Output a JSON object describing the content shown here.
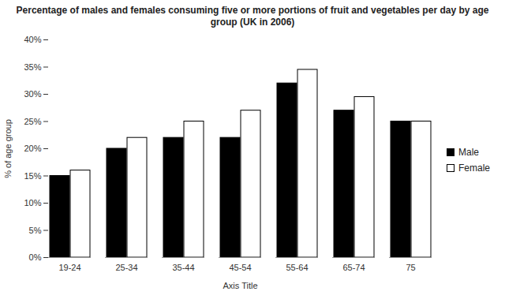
{
  "chart_data": {
    "type": "bar",
    "title": "Percentage of males and females consuming five or more portions of fruit and vegetables per day by age group (UK in 2006)",
    "x_label": "Axis Title",
    "y_label": "% of age group",
    "categories": [
      "19-24",
      "25-34",
      "35-44",
      "45-54",
      "55-64",
      "65-74",
      "75"
    ],
    "series": [
      {
        "name": "Male",
        "color": "#000000",
        "values": [
          15,
          20,
          22,
          22,
          32,
          27,
          25
        ]
      },
      {
        "name": "Female",
        "color": "#ffffff",
        "values": [
          16,
          22,
          25,
          27,
          34.5,
          29.5,
          25
        ]
      }
    ],
    "ylim": [
      0,
      40
    ],
    "yticks": [
      {
        "value": 0,
        "label": "0%"
      },
      {
        "value": 5,
        "label": "5%"
      },
      {
        "value": 10,
        "label": "10%"
      },
      {
        "value": 15,
        "label": "15%"
      },
      {
        "value": 20,
        "label": "20%"
      },
      {
        "value": 25,
        "label": "25%"
      },
      {
        "value": 30,
        "label": "30%"
      },
      {
        "value": 35,
        "label": "35%"
      },
      {
        "value": 40,
        "label": "40%"
      }
    ],
    "grid": false,
    "legend": "right"
  }
}
